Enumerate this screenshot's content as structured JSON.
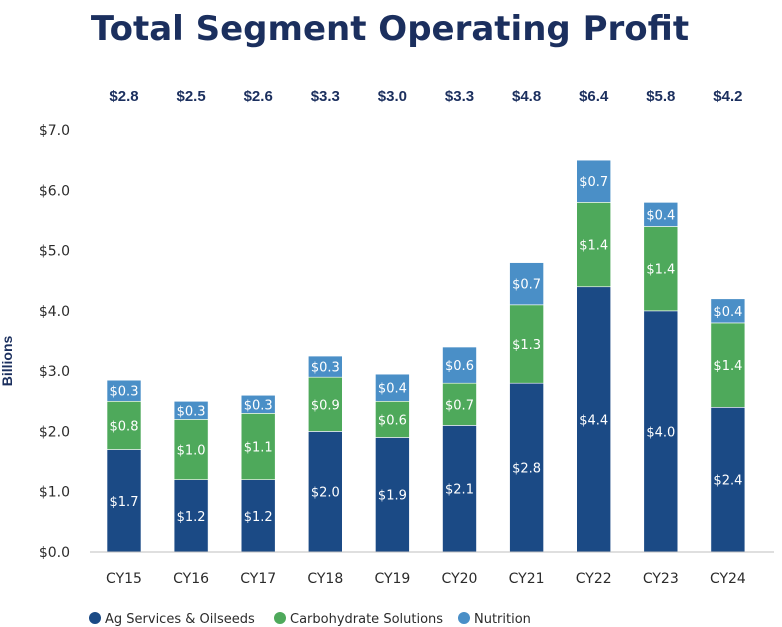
{
  "chart_data": {
    "type": "bar",
    "stacked": true,
    "title": "Total Segment Operating Profit",
    "ylabel": "Billions",
    "xlabel": "",
    "ylim": [
      0,
      7
    ],
    "yticks": [
      "$0.0",
      "$1.0",
      "$2.0",
      "$3.0",
      "$4.0",
      "$5.0",
      "$6.0",
      "$7.0"
    ],
    "categories": [
      "CY15",
      "CY16",
      "CY17",
      "CY18",
      "CY19",
      "CY20",
      "CY21",
      "CY22",
      "CY23",
      "CY24"
    ],
    "totals": [
      "$2.8",
      "$2.5",
      "$2.6",
      "$3.3",
      "$3.0",
      "$3.3",
      "$4.8",
      "$6.4",
      "$5.8",
      "$4.2"
    ],
    "series": [
      {
        "name": "Ag Services & Oilseeds",
        "color": "#1b4a85",
        "values": [
          1.7,
          1.2,
          1.2,
          2.0,
          1.9,
          2.1,
          2.8,
          4.4,
          4.0,
          2.4
        ],
        "labels": [
          "$1.7",
          "$1.2",
          "$1.2",
          "$2.0",
          "$1.9",
          "$2.1",
          "$2.8",
          "$4.4",
          "$4.0",
          "$2.4"
        ]
      },
      {
        "name": "Carbohydrate Solutions",
        "color": "#4ea95b",
        "values": [
          0.8,
          1.0,
          1.1,
          0.9,
          0.6,
          0.7,
          1.3,
          1.4,
          1.4,
          1.4
        ],
        "labels": [
          "$0.8",
          "$1.0",
          "$1.1",
          "$0.9",
          "$0.6",
          "$0.7",
          "$1.3",
          "$1.4",
          "$1.4",
          "$1.4"
        ]
      },
      {
        "name": "Nutrition",
        "color": "#4a8fc7",
        "values": [
          0.35,
          0.3,
          0.3,
          0.35,
          0.45,
          0.6,
          0.7,
          0.7,
          0.4,
          0.4
        ],
        "labels": [
          "$0.3",
          "$0.3",
          "$0.3",
          "$0.3",
          "$0.4",
          "$0.6",
          "$0.7",
          "$0.7",
          "$0.4",
          "$0.4"
        ]
      }
    ],
    "grid": false,
    "legend": "bottom-left",
    "text_color": "#1b2f5e"
  }
}
